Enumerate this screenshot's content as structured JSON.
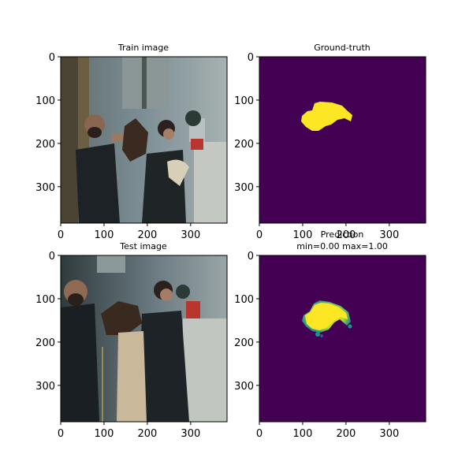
{
  "colors": {
    "mask_background": "#440154",
    "mask_foreground": "#fde725",
    "mask_edge_teal": "#21918c",
    "mask_edge_blue": "#3b528b"
  },
  "chart_data": [
    {
      "type": "image",
      "title": "Train image",
      "image_size": [
        384,
        384
      ],
      "xticks": [
        0,
        100,
        200,
        300
      ],
      "yticks": [
        0,
        100,
        200,
        300
      ],
      "content": "photo"
    },
    {
      "type": "heatmap",
      "title": "Ground-truth",
      "image_size": [
        384,
        384
      ],
      "xticks": [
        0,
        100,
        200,
        300
      ],
      "yticks": [
        0,
        100,
        200,
        300
      ],
      "colormap": "viridis",
      "value_range": [
        0,
        1
      ]
    },
    {
      "type": "image",
      "title": "Test image",
      "image_size": [
        384,
        384
      ],
      "xticks": [
        0,
        100,
        200,
        300
      ],
      "yticks": [
        0,
        100,
        200,
        300
      ],
      "content": "photo"
    },
    {
      "type": "heatmap",
      "title": "Prediction",
      "subtitle": "min=0.00 max=1.00",
      "image_size": [
        384,
        384
      ],
      "xticks": [
        0,
        100,
        200,
        300
      ],
      "yticks": [
        0,
        100,
        200,
        300
      ],
      "colormap": "viridis",
      "value_range": [
        0,
        1
      ]
    }
  ]
}
